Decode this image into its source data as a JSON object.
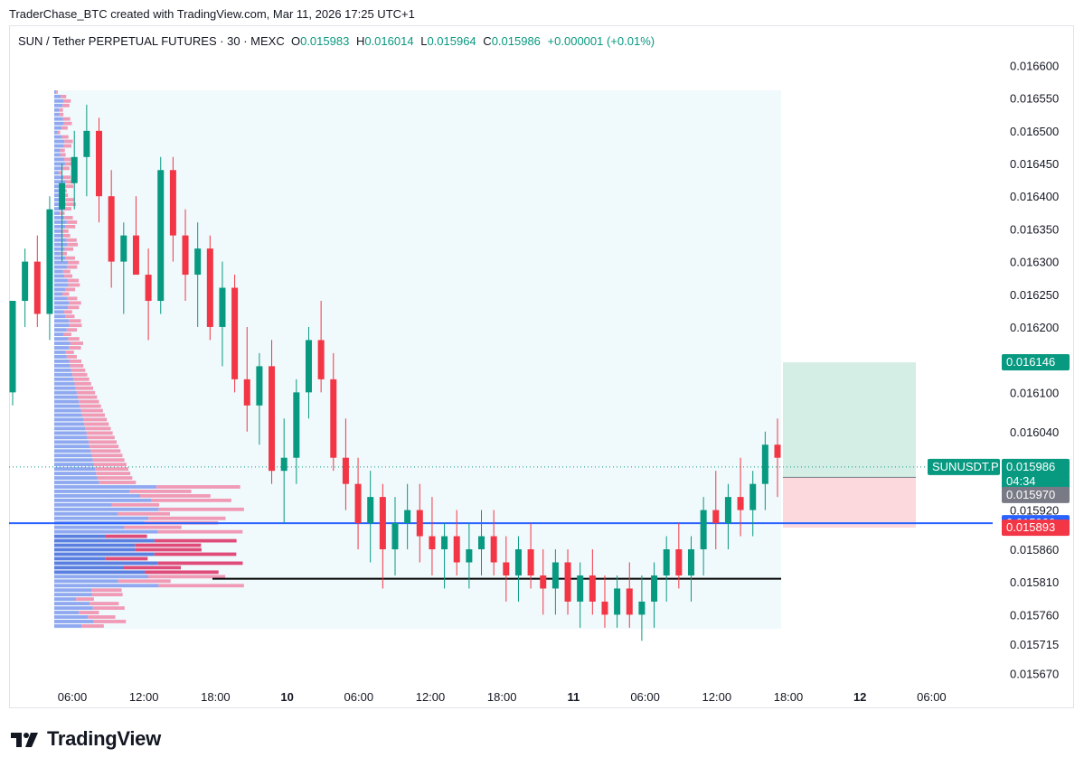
{
  "header": {
    "credit": "TraderChase_BTC created with TradingView.com, Mar 11, 2026 17:25 UTC+1"
  },
  "legend": {
    "symbol": "SUN / Tether PERPETUAL FUTURES · 30 · MEXC",
    "o_label": "O",
    "o_value": "0.015983",
    "h_label": "H",
    "h_value": "0.016014",
    "l_label": "L",
    "l_value": "0.015964",
    "c_label": "C",
    "c_value": "0.015986",
    "change": "+0.000001 (+0.01%)"
  },
  "chart_data": {
    "type": "candlestick",
    "interval": "30",
    "price_axis_ticks": [
      "0.016600",
      "0.016550",
      "0.016500",
      "0.016450",
      "0.016400",
      "0.016350",
      "0.016300",
      "0.016250",
      "0.016200",
      "0.016100",
      "0.016040",
      "0.015920",
      "0.015860",
      "0.015810",
      "0.015760",
      "0.015715",
      "0.015670"
    ],
    "time_axis_ticks": [
      {
        "label": "06:00",
        "bold": false
      },
      {
        "label": "12:00",
        "bold": false
      },
      {
        "label": "18:00",
        "bold": false
      },
      {
        "label": "10",
        "bold": true
      },
      {
        "label": "06:00",
        "bold": false
      },
      {
        "label": "12:00",
        "bold": false
      },
      {
        "label": "18:00",
        "bold": false
      },
      {
        "label": "11",
        "bold": true
      },
      {
        "label": "06:00",
        "bold": false
      },
      {
        "label": "12:00",
        "bold": false
      },
      {
        "label": "18:00",
        "bold": false
      },
      {
        "label": "12",
        "bold": true
      },
      {
        "label": "06:00",
        "bold": false
      }
    ],
    "price_tags": [
      {
        "text": "0.016146",
        "color": "#089981",
        "price": 0.016146
      },
      {
        "text": "SUNUSDT.P",
        "color": "#089981",
        "price": 0.015986
      },
      {
        "text": "0.015986",
        "color": "#089981",
        "price": 0.015986
      },
      {
        "text": "04:34",
        "color": "#089981",
        "price": 0.015975
      },
      {
        "text": "0.015970",
        "color": "#787b86",
        "price": 0.01597
      },
      {
        "text": "0.015900",
        "color": "#2962ff",
        "price": 0.0159
      },
      {
        "text": "0.015893",
        "color": "#f23645",
        "price": 0.015893
      }
    ],
    "horizontal_lines": [
      {
        "name": "blue-level",
        "price": 0.0159,
        "color": "#2962ff"
      },
      {
        "name": "black-level",
        "price": 0.015815,
        "color": "#000000"
      }
    ],
    "position": {
      "entry": 0.01597,
      "target": 0.016146,
      "stop": 0.015893
    },
    "ylim": [
      0.01565,
      0.01662
    ],
    "candles": [
      [
        0.0161,
        0.01624,
        0.01608,
        0.01624
      ],
      [
        0.01624,
        0.01632,
        0.0162,
        0.0163
      ],
      [
        0.0163,
        0.01634,
        0.0162,
        0.01622
      ],
      [
        0.01622,
        0.0164,
        0.01618,
        0.01638
      ],
      [
        0.01638,
        0.01645,
        0.0163,
        0.01642
      ],
      [
        0.01642,
        0.0165,
        0.01638,
        0.01646
      ],
      [
        0.01646,
        0.01654,
        0.0164,
        0.0165
      ],
      [
        0.0165,
        0.01652,
        0.01636,
        0.0164
      ],
      [
        0.0164,
        0.01644,
        0.01626,
        0.0163
      ],
      [
        0.0163,
        0.01636,
        0.01622,
        0.01634
      ],
      [
        0.01634,
        0.0164,
        0.01628,
        0.01628
      ],
      [
        0.01628,
        0.01632,
        0.01618,
        0.01624
      ],
      [
        0.01624,
        0.01646,
        0.01622,
        0.01644
      ],
      [
        0.01644,
        0.01646,
        0.0163,
        0.01634
      ],
      [
        0.01634,
        0.01638,
        0.01624,
        0.01628
      ],
      [
        0.01628,
        0.01636,
        0.0162,
        0.01632
      ],
      [
        0.01632,
        0.01634,
        0.01618,
        0.0162
      ],
      [
        0.0162,
        0.0163,
        0.01614,
        0.01626
      ],
      [
        0.01626,
        0.01628,
        0.0161,
        0.01612
      ],
      [
        0.01612,
        0.0162,
        0.01604,
        0.01608
      ],
      [
        0.01608,
        0.01616,
        0.01602,
        0.01614
      ],
      [
        0.01614,
        0.01618,
        0.01596,
        0.01598
      ],
      [
        0.01598,
        0.01606,
        0.0159,
        0.016
      ],
      [
        0.016,
        0.01612,
        0.01596,
        0.0161
      ],
      [
        0.0161,
        0.0162,
        0.01606,
        0.01618
      ],
      [
        0.01618,
        0.01624,
        0.0161,
        0.01612
      ],
      [
        0.01612,
        0.01616,
        0.01598,
        0.016
      ],
      [
        0.016,
        0.01606,
        0.01592,
        0.01596
      ],
      [
        0.01596,
        0.016,
        0.01586,
        0.0159
      ],
      [
        0.0159,
        0.01598,
        0.01584,
        0.01594
      ],
      [
        0.01594,
        0.01596,
        0.0158,
        0.01586
      ],
      [
        0.01586,
        0.01594,
        0.01582,
        0.0159
      ],
      [
        0.0159,
        0.01596,
        0.01586,
        0.01592
      ],
      [
        0.01592,
        0.01596,
        0.01584,
        0.01588
      ],
      [
        0.01588,
        0.01594,
        0.01582,
        0.01586
      ],
      [
        0.01586,
        0.0159,
        0.0158,
        0.01588
      ],
      [
        0.01588,
        0.01592,
        0.01582,
        0.01584
      ],
      [
        0.01584,
        0.0159,
        0.0158,
        0.01586
      ],
      [
        0.01586,
        0.01592,
        0.01582,
        0.01588
      ],
      [
        0.01588,
        0.01592,
        0.01582,
        0.01584
      ],
      [
        0.01584,
        0.01588,
        0.01578,
        0.01582
      ],
      [
        0.01582,
        0.01588,
        0.01578,
        0.01586
      ],
      [
        0.01586,
        0.0159,
        0.0158,
        0.01582
      ],
      [
        0.01582,
        0.01586,
        0.01576,
        0.0158
      ],
      [
        0.0158,
        0.01586,
        0.01576,
        0.01584
      ],
      [
        0.01584,
        0.01586,
        0.01576,
        0.01578
      ],
      [
        0.01578,
        0.01584,
        0.01574,
        0.01582
      ],
      [
        0.01582,
        0.01586,
        0.01576,
        0.01578
      ],
      [
        0.01578,
        0.01582,
        0.01574,
        0.01576
      ],
      [
        0.01576,
        0.01582,
        0.01574,
        0.0158
      ],
      [
        0.0158,
        0.01584,
        0.01574,
        0.01576
      ],
      [
        0.01576,
        0.01582,
        0.01572,
        0.01578
      ],
      [
        0.01578,
        0.01584,
        0.01574,
        0.01582
      ],
      [
        0.01582,
        0.01588,
        0.01578,
        0.01586
      ],
      [
        0.01586,
        0.0159,
        0.0158,
        0.01582
      ],
      [
        0.01582,
        0.01588,
        0.01578,
        0.01586
      ],
      [
        0.01586,
        0.01594,
        0.01582,
        0.01592
      ],
      [
        0.01592,
        0.01598,
        0.01586,
        0.0159
      ],
      [
        0.0159,
        0.01596,
        0.01586,
        0.01594
      ],
      [
        0.01594,
        0.016,
        0.01588,
        0.01592
      ],
      [
        0.01592,
        0.01598,
        0.01588,
        0.01596
      ],
      [
        0.01596,
        0.01604,
        0.01592,
        0.01602
      ],
      [
        0.01602,
        0.01606,
        0.01594,
        0.016
      ]
    ]
  }
}
